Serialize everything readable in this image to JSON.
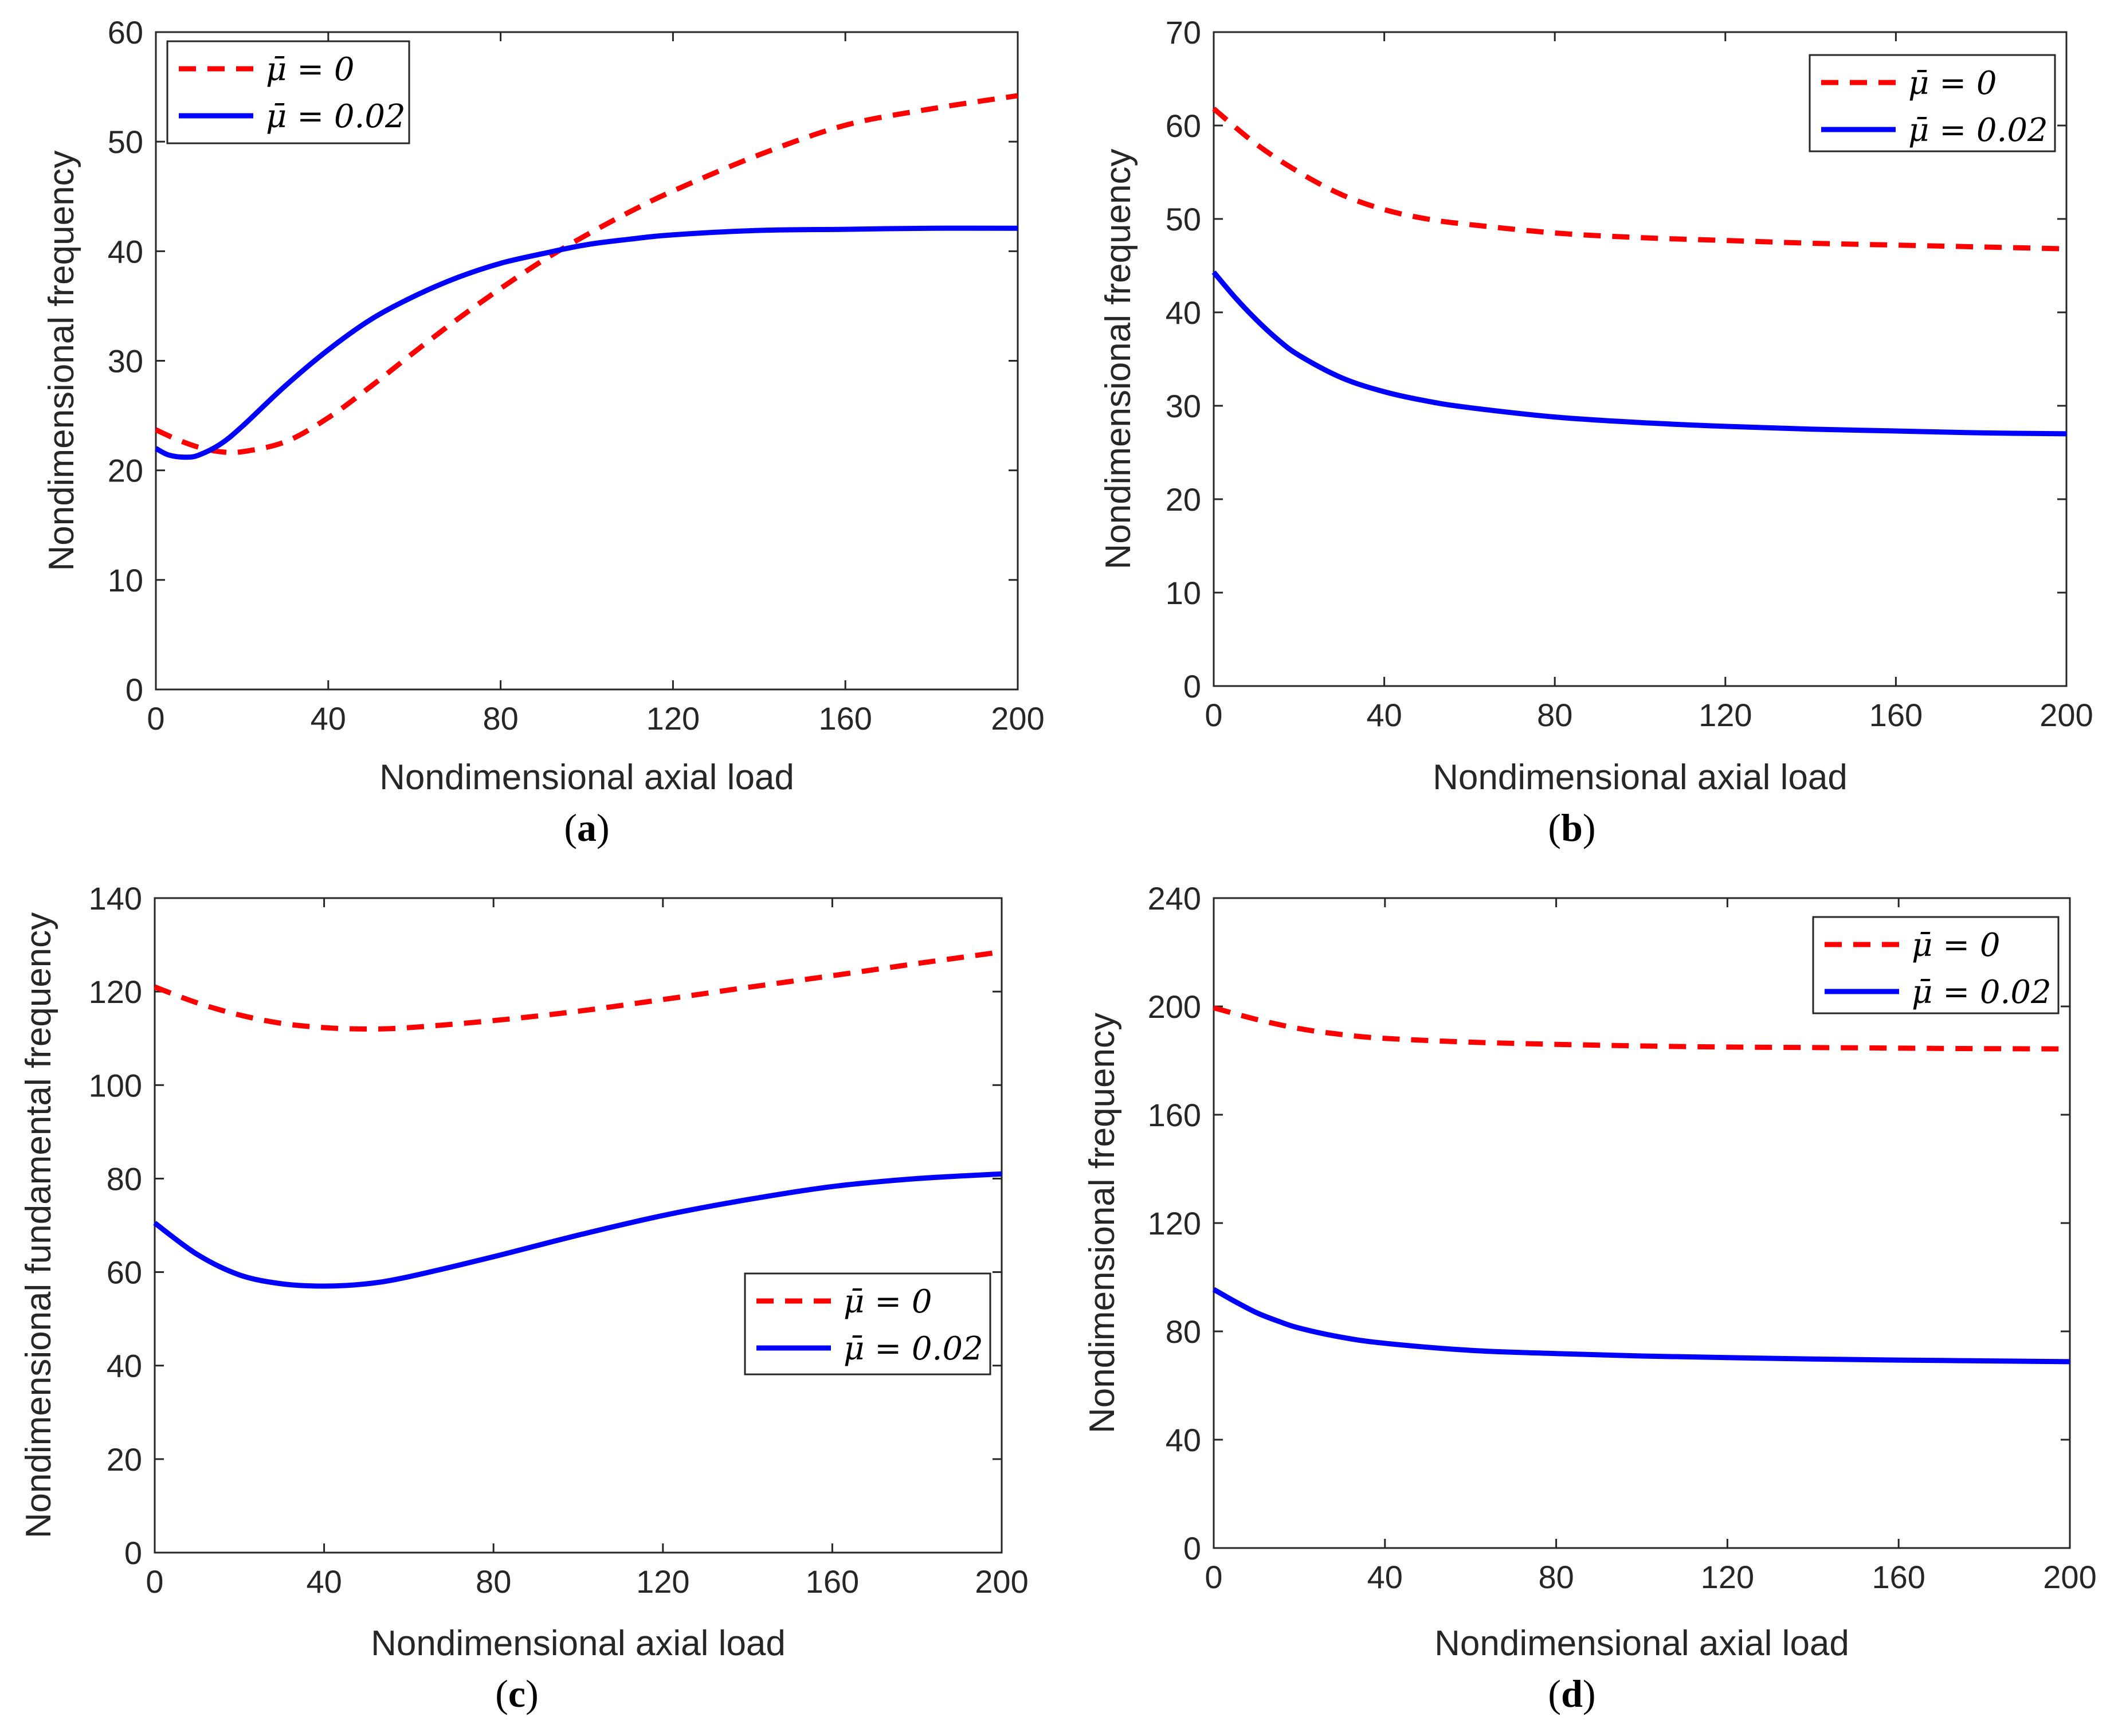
{
  "chart_data": [
    {
      "type": "line",
      "panel": "(a)",
      "panel_letter": "a",
      "xlabel": "Nondimensional axial load",
      "ylabel": "Nondimensional  frequency",
      "xlim": [
        0,
        200
      ],
      "ylim": [
        0,
        60
      ],
      "xticks": [
        0,
        40,
        80,
        120,
        160,
        200
      ],
      "yticks": [
        0,
        10,
        20,
        30,
        40,
        50,
        60
      ],
      "legend_position": "top-left",
      "series": [
        {
          "name": "μ̄ = 0",
          "color": "#ff0000",
          "style": "dashed",
          "x": [
            0,
            5,
            10,
            15,
            20,
            30,
            40,
            50,
            60,
            70,
            80,
            90,
            100,
            110,
            120,
            140,
            160,
            180,
            200
          ],
          "y": [
            23.7,
            22.8,
            22.1,
            21.7,
            21.7,
            22.6,
            24.8,
            27.7,
            30.8,
            33.8,
            36.6,
            39.2,
            41.5,
            43.6,
            45.5,
            48.8,
            51.5,
            53.0,
            54.2
          ]
        },
        {
          "name": "μ̄ = 0.02",
          "color": "#0000ff",
          "style": "solid",
          "x": [
            0,
            3,
            7,
            10,
            15,
            20,
            30,
            40,
            50,
            60,
            70,
            80,
            90,
            100,
            110,
            120,
            140,
            160,
            180,
            200
          ],
          "y": [
            22.0,
            21.4,
            21.2,
            21.4,
            22.4,
            24.0,
            27.7,
            31.0,
            33.8,
            35.9,
            37.6,
            38.9,
            39.8,
            40.6,
            41.1,
            41.5,
            41.9,
            42.0,
            42.1,
            42.1
          ]
        }
      ]
    },
    {
      "type": "line",
      "panel": "(b)",
      "panel_letter": "b",
      "xlabel": "Nondimensional axial load",
      "ylabel": "Nondimensional  frequency",
      "xlim": [
        0,
        200
      ],
      "ylim": [
        0,
        70
      ],
      "xticks": [
        0,
        40,
        80,
        120,
        160,
        200
      ],
      "yticks": [
        0,
        10,
        20,
        30,
        40,
        50,
        60,
        70
      ],
      "legend_position": "top-right",
      "series": [
        {
          "name": "μ̄ = 0",
          "color": "#ff0000",
          "style": "dashed",
          "x": [
            0,
            10,
            20,
            30,
            40,
            50,
            60,
            80,
            100,
            120,
            140,
            160,
            180,
            200
          ],
          "y": [
            61.8,
            58.0,
            55.0,
            52.6,
            51.0,
            50.0,
            49.4,
            48.5,
            48.0,
            47.7,
            47.4,
            47.2,
            47.0,
            46.8
          ]
        },
        {
          "name": "μ̄ = 0.02",
          "color": "#0000ff",
          "style": "solid",
          "x": [
            0,
            5,
            10,
            15,
            20,
            30,
            40,
            50,
            60,
            80,
            100,
            120,
            140,
            160,
            180,
            200
          ],
          "y": [
            44.3,
            41.6,
            39.2,
            37.1,
            35.4,
            33.0,
            31.5,
            30.5,
            29.8,
            28.8,
            28.2,
            27.8,
            27.5,
            27.3,
            27.1,
            27.0
          ]
        }
      ]
    },
    {
      "type": "line",
      "panel": "(c)",
      "panel_letter": "c",
      "xlabel": "Nondimensional axial load",
      "ylabel": "Nondimensional fundamental frequency",
      "xlim": [
        0,
        200
      ],
      "ylim": [
        0,
        140
      ],
      "xticks": [
        0,
        40,
        80,
        120,
        160,
        200
      ],
      "yticks": [
        0,
        20,
        40,
        60,
        80,
        100,
        120,
        140
      ],
      "legend_position": "lower-right",
      "series": [
        {
          "name": "μ̄ = 0",
          "color": "#ff0000",
          "style": "dashed",
          "x": [
            0,
            10,
            20,
            30,
            40,
            50,
            60,
            80,
            100,
            120,
            140,
            160,
            180,
            200
          ],
          "y": [
            121.0,
            117.6,
            115.0,
            113.2,
            112.3,
            112.0,
            112.3,
            113.8,
            115.8,
            118.3,
            120.9,
            123.4,
            126.0,
            128.5
          ]
        },
        {
          "name": "μ̄ = 0.02",
          "color": "#0000ff",
          "style": "solid",
          "x": [
            0,
            10,
            20,
            30,
            40,
            50,
            60,
            80,
            100,
            120,
            140,
            160,
            180,
            200
          ],
          "y": [
            70.5,
            63.8,
            59.4,
            57.5,
            57.0,
            57.5,
            59.0,
            63.3,
            67.9,
            72.1,
            75.5,
            78.3,
            80.0,
            81.0
          ]
        }
      ]
    },
    {
      "type": "line",
      "panel": "(d)",
      "panel_letter": "d",
      "xlabel": "Nondimensional axial load",
      "ylabel": "Nondimensional frequency",
      "xlim": [
        0,
        200
      ],
      "ylim": [
        0,
        240
      ],
      "xticks": [
        0,
        40,
        80,
        120,
        160,
        200
      ],
      "yticks": [
        0,
        40,
        80,
        120,
        160,
        200,
        240
      ],
      "legend_position": "top-right",
      "series": [
        {
          "name": "μ̄ = 0",
          "color": "#ff0000",
          "style": "dashed",
          "x": [
            0,
            10,
            20,
            30,
            40,
            60,
            80,
            100,
            120,
            140,
            160,
            180,
            200
          ],
          "y": [
            199.5,
            195.2,
            191.8,
            189.6,
            188.2,
            186.8,
            186.0,
            185.4,
            185.0,
            184.8,
            184.6,
            184.4,
            184.3
          ]
        },
        {
          "name": "μ̄ = 0.02",
          "color": "#0000ff",
          "style": "solid",
          "x": [
            0,
            5,
            10,
            15,
            20,
            30,
            40,
            60,
            80,
            100,
            120,
            140,
            160,
            180,
            200
          ],
          "y": [
            95.5,
            91.0,
            86.9,
            83.8,
            81.2,
            77.8,
            75.6,
            73.0,
            71.8,
            70.9,
            70.3,
            69.8,
            69.4,
            69.1,
            68.8
          ]
        }
      ]
    }
  ]
}
